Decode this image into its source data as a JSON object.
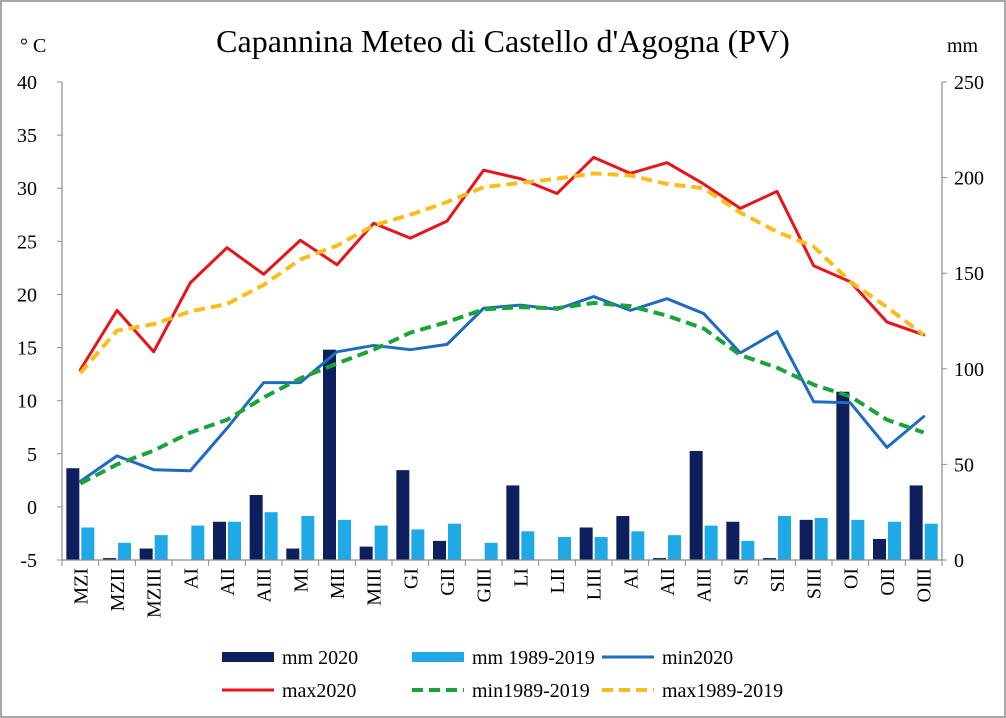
{
  "chart_data": {
    "type": "bar+line",
    "title": "Capannina Meteo di Castello d'Agogna (PV)",
    "y_left_label": "° C",
    "y_right_label": "mm",
    "y_left_lim": [
      -5,
      40
    ],
    "y_left_ticks": [
      -5,
      0,
      5,
      10,
      15,
      20,
      25,
      30,
      35,
      40
    ],
    "y_right_lim": [
      0,
      250
    ],
    "y_right_ticks": [
      0,
      50,
      100,
      150,
      200,
      250
    ],
    "grid": false,
    "legend_position": "bottom",
    "categories": [
      "MZI",
      "MZII",
      "MZIII",
      "AI",
      "AII",
      "AIII",
      "MI",
      "MII",
      "MIII",
      "GI",
      "GII",
      "GIII",
      "LI",
      "LII",
      "LIII",
      "AI",
      "AII",
      "AIII",
      "SI",
      "SII",
      "SIII",
      "OI",
      "OII",
      "OIII"
    ],
    "bar_series": [
      {
        "name": "mm 2020",
        "color": "#0d1f5c",
        "axis": "right",
        "values": [
          48,
          1,
          6,
          0,
          20,
          34,
          6,
          110,
          7,
          47,
          10,
          0,
          39,
          0,
          17,
          23,
          1,
          57,
          20,
          1,
          21,
          88,
          11,
          39
        ]
      },
      {
        "name": "mm 1989-2019",
        "color": "#1fa9e6",
        "axis": "right",
        "values": [
          17,
          9,
          13,
          18,
          20,
          25,
          23,
          21,
          18,
          16,
          19,
          9,
          15,
          12,
          12,
          15,
          13,
          18,
          10,
          23,
          22,
          21,
          20,
          19
        ]
      }
    ],
    "line_series": [
      {
        "name": "min2020",
        "color": "#1f6bbd",
        "dash": false,
        "axis": "left",
        "values": [
          2.4,
          4.8,
          3.5,
          3.4,
          7.4,
          11.7,
          11.7,
          14.6,
          15.2,
          14.8,
          15.3,
          18.7,
          19.0,
          18.6,
          19.8,
          18.5,
          19.6,
          18.2,
          14.5,
          16.5,
          9.9,
          9.8,
          5.6,
          8.5
        ]
      },
      {
        "name": "max2020",
        "color": "#e8141b",
        "dash": false,
        "axis": "left",
        "values": [
          12.9,
          18.5,
          14.6,
          21.1,
          24.4,
          21.9,
          25.1,
          22.8,
          26.7,
          25.3,
          26.9,
          31.7,
          30.9,
          29.5,
          32.9,
          31.4,
          32.4,
          30.4,
          28.1,
          29.7,
          22.7,
          21.2,
          17.4,
          16.2
        ]
      },
      {
        "name": "min1989-2019",
        "color": "#1aa33a",
        "dash": true,
        "axis": "left",
        "values": [
          2.2,
          4.0,
          5.3,
          7.0,
          8.2,
          10.3,
          12.1,
          13.5,
          14.8,
          16.4,
          17.4,
          18.6,
          18.8,
          18.7,
          19.2,
          18.9,
          18.0,
          16.8,
          14.3,
          13.1,
          11.5,
          10.4,
          8.2,
          7.0
        ]
      },
      {
        "name": "max1989-2019",
        "color": "#fbbd1b",
        "dash": true,
        "axis": "left",
        "values": [
          12.6,
          16.6,
          17.2,
          18.4,
          19.1,
          20.9,
          23.3,
          24.6,
          26.5,
          27.5,
          28.7,
          30.1,
          30.5,
          30.9,
          31.4,
          31.2,
          30.4,
          30.0,
          27.7,
          25.9,
          24.5,
          21.2,
          18.8,
          16.2
        ]
      }
    ]
  }
}
